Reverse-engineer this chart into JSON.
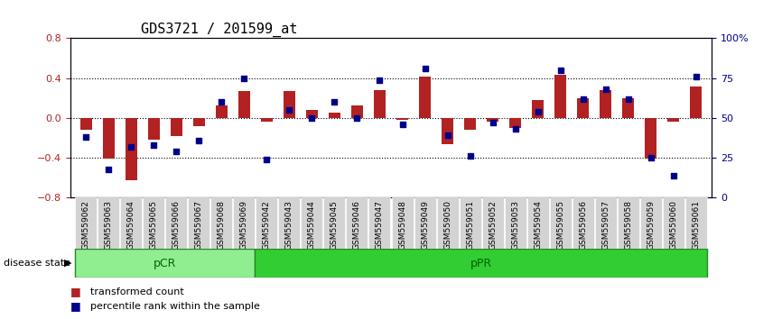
{
  "title": "GDS3721 / 201599_at",
  "samples": [
    "GSM559062",
    "GSM559063",
    "GSM559064",
    "GSM559065",
    "GSM559066",
    "GSM559067",
    "GSM559068",
    "GSM559069",
    "GSM559042",
    "GSM559043",
    "GSM559044",
    "GSM559045",
    "GSM559046",
    "GSM559047",
    "GSM559048",
    "GSM559049",
    "GSM559050",
    "GSM559051",
    "GSM559052",
    "GSM559053",
    "GSM559054",
    "GSM559055",
    "GSM559056",
    "GSM559057",
    "GSM559058",
    "GSM559059",
    "GSM559060",
    "GSM559061"
  ],
  "bar_values": [
    -0.12,
    -0.41,
    -0.62,
    -0.22,
    -0.18,
    -0.08,
    0.13,
    0.27,
    -0.04,
    0.27,
    0.08,
    0.05,
    0.13,
    0.28,
    -0.02,
    0.42,
    -0.26,
    -0.12,
    -0.04,
    -0.1,
    0.18,
    0.43,
    0.2,
    0.28,
    0.2,
    -0.41,
    -0.04,
    0.32
  ],
  "dot_values": [
    38,
    18,
    32,
    33,
    29,
    36,
    60,
    75,
    24,
    55,
    50,
    60,
    50,
    74,
    46,
    81,
    39,
    26,
    47,
    43,
    54,
    80,
    62,
    68,
    62,
    25,
    14,
    76
  ],
  "pCR_count": 8,
  "pPR_count": 20,
  "bar_color": "#b22222",
  "dot_color": "#00008b",
  "pCR_color": "#90ee90",
  "pPR_color": "#32cd32",
  "group_line_color": "#228B22",
  "ylim_left": [
    -0.8,
    0.8
  ],
  "ylim_right": [
    0,
    100
  ],
  "dotted_lines": [
    -0.4,
    0.0,
    0.4
  ],
  "right_ticks": [
    0,
    25,
    50,
    75,
    100
  ],
  "right_tick_labels": [
    "0",
    "25",
    "50",
    "75",
    "100%"
  ],
  "background_plot": "#f0f0f0",
  "legend_bar_label": "transformed count",
  "legend_dot_label": "percentile rank within the sample"
}
